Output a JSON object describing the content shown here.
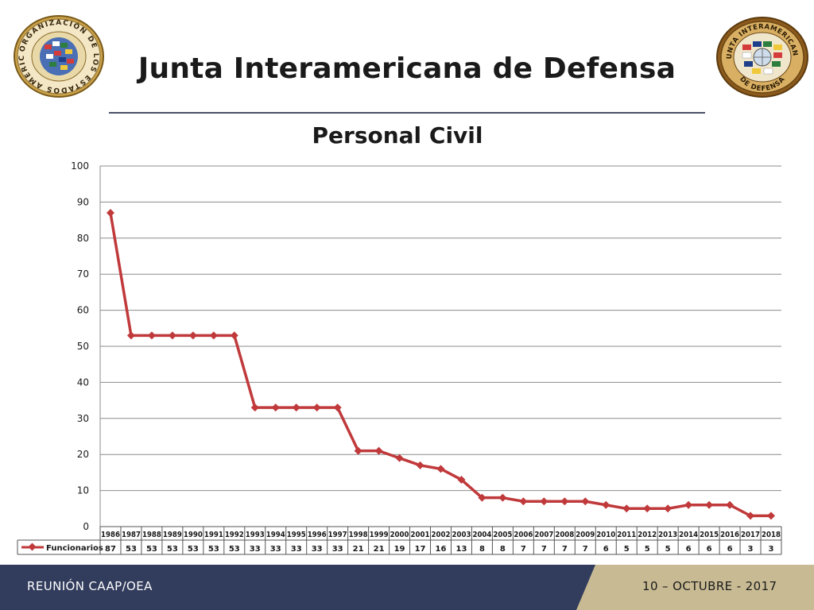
{
  "header": {
    "title": "Junta Interamericana de Defensa",
    "left_logo": {
      "ring_text": "ORGANIZACIÓN DE LOS ESTADOS AMERICANOS",
      "icon": "oas-seal-icon"
    },
    "right_logo": {
      "ring_text_top": "JUNTA INTERAMERICANA",
      "ring_text_bottom": "DE DEFENSA",
      "icon": "iadb-seal-icon"
    }
  },
  "footer": {
    "left_text": "REUNIÓN CAAP/OEA",
    "right_text": "10 – OCTUBRE - 2017",
    "colors": {
      "bar": "#323c5c",
      "accent": "#c8bb94"
    }
  },
  "chart_data": {
    "type": "line",
    "title": "Personal Civil",
    "xlabel": "",
    "ylabel": "",
    "ylim": [
      0,
      100
    ],
    "yticks": [
      0,
      10,
      20,
      30,
      40,
      50,
      60,
      70,
      80,
      90,
      100
    ],
    "grid": true,
    "legend_placement": "data-table",
    "categories": [
      "1986",
      "1987",
      "1988",
      "1989",
      "1990",
      "1991",
      "1992",
      "1993",
      "1994",
      "1995",
      "1996",
      "1997",
      "1998",
      "1999",
      "2000",
      "2001",
      "2002",
      "2003",
      "2004",
      "2005",
      "2006",
      "2007",
      "2008",
      "2009",
      "2010",
      "2011",
      "2012",
      "2013",
      "2014",
      "2015",
      "2016",
      "2017",
      "2018"
    ],
    "series": [
      {
        "name": "Funcionarios",
        "color": "#c0393b",
        "values": [
          87,
          53,
          53,
          53,
          53,
          53,
          53,
          33,
          33,
          33,
          33,
          33,
          21,
          21,
          19,
          17,
          16,
          13,
          8,
          8,
          7,
          7,
          7,
          7,
          6,
          5,
          5,
          5,
          6,
          6,
          6,
          3,
          3
        ]
      }
    ]
  }
}
